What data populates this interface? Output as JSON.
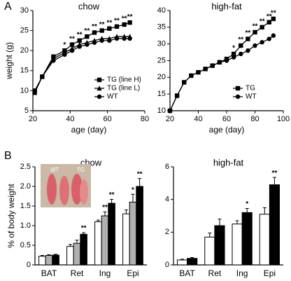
{
  "panel_labels": [
    "A",
    "B"
  ],
  "inset": {
    "labels": [
      "WT",
      "TG"
    ]
  },
  "chart_data": [
    {
      "type": "line",
      "title": "chow",
      "xlabel": "age (day)",
      "ylabel": "weight (g)",
      "xlim": [
        20,
        80
      ],
      "xticks": [
        20,
        40,
        60,
        80
      ],
      "ylim": [
        5,
        30
      ],
      "yticks": [
        5,
        10,
        15,
        20,
        25,
        30
      ],
      "legend": "lower right",
      "x": [
        21,
        25,
        31,
        37,
        41,
        45,
        49,
        53,
        57,
        61,
        65,
        69,
        72
      ],
      "series": [
        {
          "name": "TG (line H)",
          "color": "#000000",
          "marker": "square",
          "values": [
            10,
            13.5,
            18.5,
            20,
            21.5,
            22.5,
            23.5,
            24.5,
            25,
            25.5,
            26,
            26.5,
            27
          ],
          "significance": [
            null,
            null,
            null,
            "*",
            "**",
            "**",
            "**",
            "**",
            "**",
            "**",
            "**",
            "**",
            "**"
          ]
        },
        {
          "name": "TG (line L)",
          "color": "#000000",
          "marker": "triangle",
          "values": [
            9.5,
            13.5,
            18,
            19.5,
            20.5,
            21.5,
            22,
            22.5,
            23,
            23,
            23.5,
            23.5,
            23.5
          ]
        },
        {
          "name": "WT",
          "color": "#000000",
          "marker": "circle",
          "values": [
            9.5,
            13.5,
            17.5,
            19,
            20,
            21,
            21.5,
            22,
            22.5,
            22.5,
            23,
            23,
            23
          ]
        }
      ]
    },
    {
      "type": "line",
      "title": "high-fat",
      "xlabel": "age (day)",
      "xlim": [
        20,
        100
      ],
      "xticks": [
        20,
        40,
        60,
        80,
        100
      ],
      "ylim": [
        10,
        40
      ],
      "yticks": [
        10,
        15,
        20,
        25,
        30,
        35,
        40
      ],
      "legend": "lower right",
      "x": [
        20,
        25,
        30,
        35,
        40,
        45,
        50,
        55,
        60,
        65,
        70,
        75,
        80,
        85,
        90,
        93
      ],
      "series": [
        {
          "name": "TG",
          "color": "#000000",
          "marker": "square",
          "values": [
            10,
            14.5,
            18.5,
            20.5,
            21.5,
            22.5,
            23.5,
            24.5,
            25.5,
            27,
            29.5,
            31.5,
            33.5,
            35,
            36.5,
            37.5
          ],
          "significance": [
            null,
            null,
            null,
            null,
            null,
            null,
            null,
            null,
            null,
            "*",
            "**",
            "**",
            "**",
            "**",
            "**",
            "**"
          ]
        },
        {
          "name": "WT",
          "color": "#000000",
          "marker": "circle",
          "values": [
            10,
            14.5,
            18.5,
            20.5,
            21.5,
            22.5,
            23.5,
            24.5,
            25,
            26,
            27,
            28,
            29.5,
            30.5,
            31.5,
            32.5
          ]
        }
      ]
    },
    {
      "type": "bar",
      "title": "chow",
      "ylabel": "% of body weight",
      "categories": [
        "BAT",
        "Ret",
        "Ing",
        "Epi"
      ],
      "ylim": [
        0,
        2.5
      ],
      "yticks": [
        0,
        0.5,
        {
          "value": 1,
          "label": "1.0"
        },
        1.5,
        {
          "value": 2,
          "label": "2.0"
        },
        2.5
      ],
      "series": [
        {
          "color": "#ffffff",
          "values": [
            0.22,
            0.47,
            1.1,
            1.3
          ],
          "errors": [
            0.02,
            0.05,
            0.04,
            0.1
          ]
        },
        {
          "color": "#b0b0b0",
          "values": [
            0.24,
            0.55,
            1.25,
            1.6
          ],
          "errors": [
            0.02,
            0.08,
            0.1,
            0.2
          ],
          "significance": [
            null,
            null,
            "**",
            "*"
          ]
        },
        {
          "color": "#000000",
          "values": [
            0.25,
            0.78,
            1.57,
            2.0
          ],
          "errors": [
            0.02,
            0.04,
            0.1,
            0.2
          ],
          "significance": [
            null,
            "**",
            "**",
            "**"
          ]
        }
      ]
    },
    {
      "type": "bar",
      "title": "high-fat",
      "categories": [
        "BAT",
        "Ret",
        "Ing",
        "Epi"
      ],
      "ylim": [
        0,
        6
      ],
      "yticks": [
        0,
        2,
        4,
        6
      ],
      "series": [
        {
          "color": "#ffffff",
          "values": [
            0.3,
            1.7,
            2.5,
            3.1
          ],
          "errors": [
            0.05,
            0.25,
            0.2,
            0.4
          ]
        },
        {
          "color": "#000000",
          "values": [
            0.4,
            2.4,
            3.2,
            4.9
          ],
          "errors": [
            0.05,
            0.4,
            0.25,
            0.45
          ],
          "significance": [
            null,
            null,
            "*",
            "**"
          ]
        }
      ]
    }
  ]
}
